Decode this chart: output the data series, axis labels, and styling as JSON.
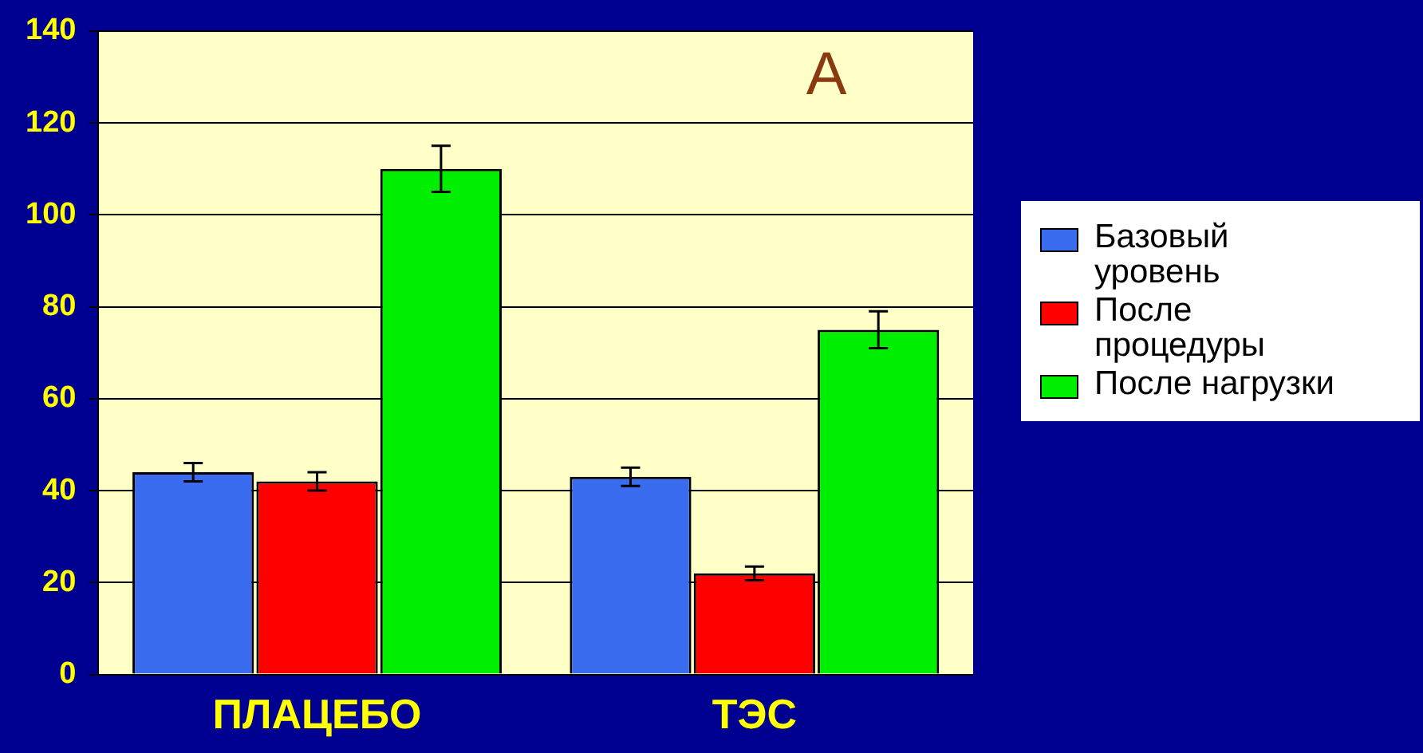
{
  "chart_data": {
    "type": "bar",
    "categories": [
      "ПЛАЦЕБО",
      "ТЭС"
    ],
    "series": [
      {
        "name": "Базовый уровень",
        "color": "#3a6cf0",
        "values": [
          44,
          43
        ],
        "errors": [
          2,
          2
        ]
      },
      {
        "name": "После процедуры",
        "color": "#ff0000",
        "values": [
          42,
          22
        ],
        "errors": [
          2,
          1.5
        ]
      },
      {
        "name": "После нагрузки",
        "color": "#00ee00",
        "values": [
          110,
          75
        ],
        "errors": [
          5,
          4
        ]
      }
    ],
    "ylim": [
      0,
      140
    ],
    "yticks": [
      0,
      20,
      40,
      60,
      80,
      100,
      120,
      140
    ],
    "grid": "y",
    "legend": "right",
    "annotations": [
      "А"
    ]
  }
}
